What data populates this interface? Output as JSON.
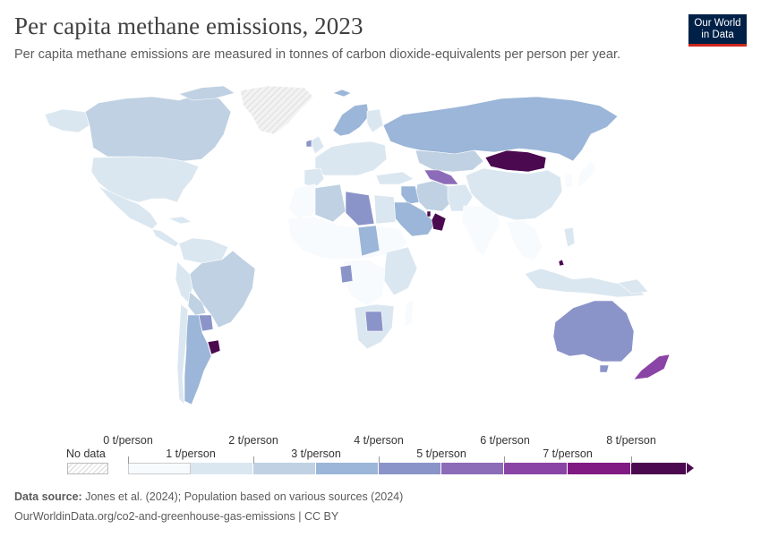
{
  "header": {
    "title": "Per capita methane emissions, 2023",
    "subtitle": "Per capita methane emissions are measured in tonnes of carbon dioxide-equivalents per person per year."
  },
  "logo": {
    "line1": "Our World",
    "line2": "in Data"
  },
  "legend": {
    "no_data_label": "No data",
    "upper_ticks": [
      "0 t/person",
      "2 t/person",
      "4 t/person",
      "6 t/person",
      "8 t/person"
    ],
    "lower_ticks": [
      "1 t/person",
      "3 t/person",
      "5 t/person",
      "7 t/person"
    ],
    "bins": [
      {
        "from": 0,
        "to": 1,
        "color": "#f7fbfd"
      },
      {
        "from": 1,
        "to": 2,
        "color": "#dbe7f0"
      },
      {
        "from": 2,
        "to": 3,
        "color": "#bfd1e2"
      },
      {
        "from": 3,
        "to": 4,
        "color": "#9bb6d8"
      },
      {
        "from": 4,
        "to": 5,
        "color": "#8b94c9"
      },
      {
        "from": 5,
        "to": 6,
        "color": "#8c6bb8"
      },
      {
        "from": 6,
        "to": 7,
        "color": "#8a44a5"
      },
      {
        "from": 7,
        "to": 8,
        "color": "#811a82"
      },
      {
        "from": 8,
        "to": null,
        "color": "#4b0a4f"
      }
    ]
  },
  "footer": {
    "source_label": "Data source:",
    "source_text": "Jones et al. (2024); Population based on various sources (2024)",
    "link": "OurWorldinData.org/co2-and-greenhouse-gas-emissions | CC BY"
  },
  "map_colors": {
    "no_data": "#ececec",
    "ocean": "#ffffff"
  }
}
